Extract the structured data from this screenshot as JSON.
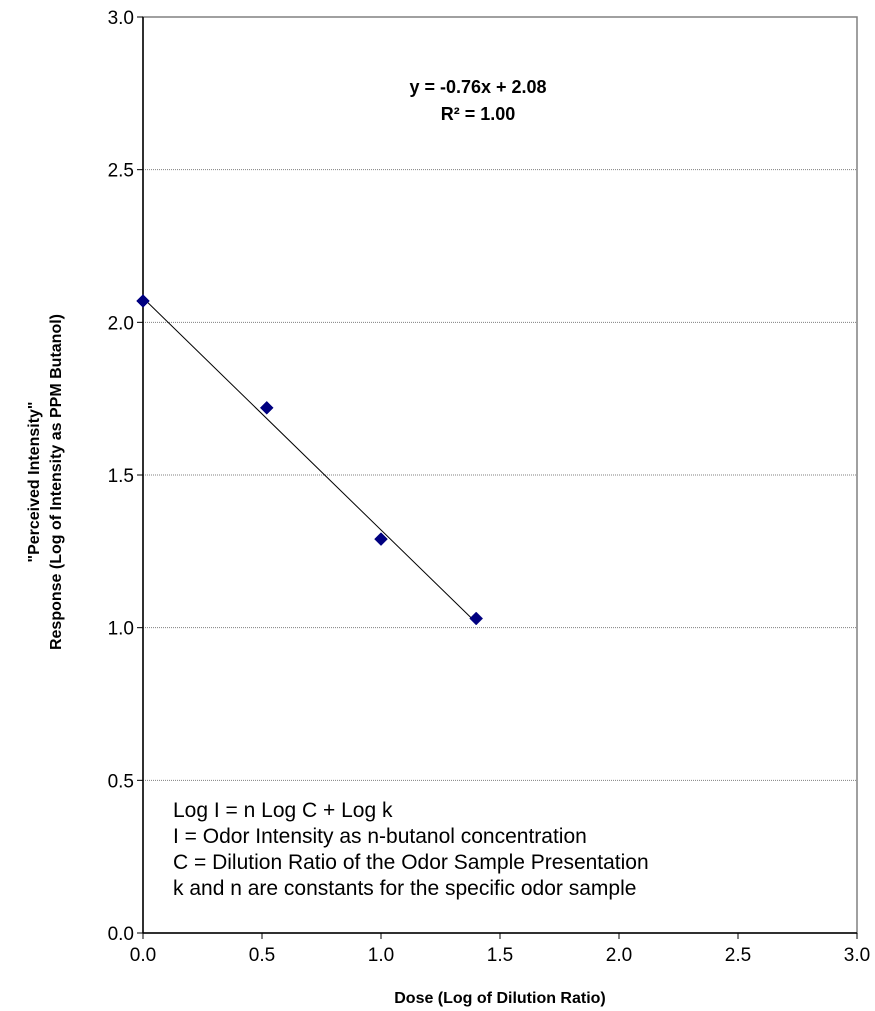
{
  "chart_data": {
    "type": "scatter",
    "title": "",
    "xlabel": "Dose (Log of Dilution Ratio)",
    "ylabel_lines": [
      "\"Perceived Intensity\"",
      "Response (Log of Intensity as PPM Butanol)"
    ],
    "xlim": [
      0,
      3
    ],
    "ylim": [
      0,
      3
    ],
    "x_ticks": [
      "0.0",
      "0.5",
      "1.0",
      "1.5",
      "2.0",
      "2.5",
      "3.0"
    ],
    "y_ticks": [
      "0.0",
      "0.5",
      "1.0",
      "1.5",
      "2.0",
      "2.5",
      "3.0"
    ],
    "grid": "horizontal",
    "legend": "none",
    "points": [
      {
        "x": 0.0,
        "y": 2.07
      },
      {
        "x": 0.52,
        "y": 1.72
      },
      {
        "x": 1.0,
        "y": 1.29
      },
      {
        "x": 1.4,
        "y": 1.03
      }
    ],
    "trendline": {
      "slope": -0.76,
      "intercept": 2.08,
      "x_range": [
        0,
        1.4
      ]
    },
    "equation_lines": [
      "y = -0.76x + 2.08",
      "R² = 1.00"
    ],
    "annotation_lines": [
      "Log I = n Log C + Log k",
      "I = Odor Intensity as n-butanol concentration",
      "C = Dilution Ratio of the Odor Sample Presentation",
      "k and n are constants for the specific odor sample"
    ],
    "colors": {
      "marker": "#000080",
      "line": "#000000",
      "grid": "#808080",
      "border": "#808080"
    }
  }
}
